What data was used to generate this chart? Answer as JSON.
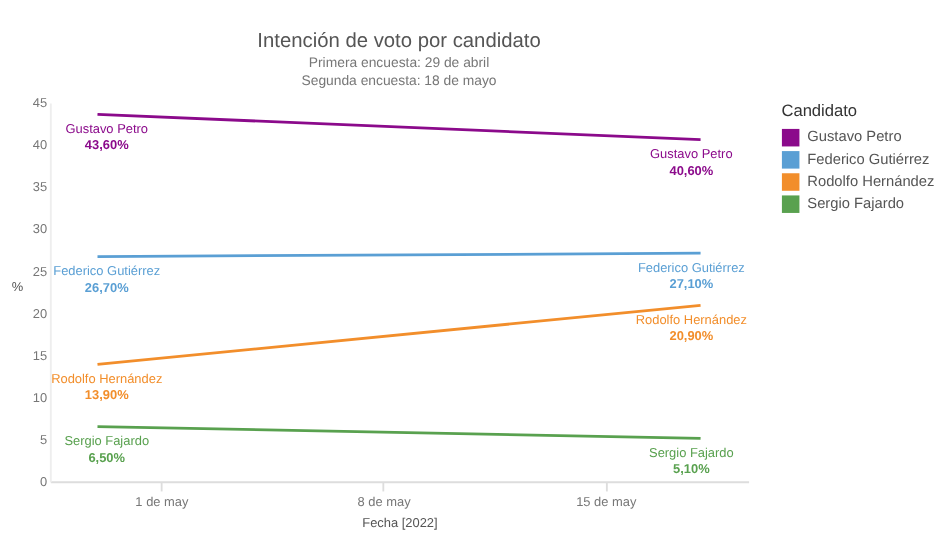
{
  "chart_data": {
    "type": "line",
    "title": "Intención de voto por candidato",
    "subtitle": [
      "Primera encuesta: 29 de abril",
      "Segunda encuesta: 18 de mayo"
    ],
    "xlabel": "Fecha [2022]",
    "ylabel": "%",
    "legend_title": "Candidato",
    "legend": "top right",
    "grid": false,
    "marker": "none",
    "line_style": "solid",
    "x": [
      "2022-04-29",
      "2022-05-18"
    ],
    "xlim": [
      "2022-04-27T12:00",
      "2022-05-19T12:00"
    ],
    "xticks": [
      {
        "value": "2022-05-01",
        "label": "1 de may"
      },
      {
        "value": "2022-05-08",
        "label": "8 de may"
      },
      {
        "value": "2022-05-15",
        "label": "15 de may"
      }
    ],
    "ylim": [
      0,
      45
    ],
    "yticks": [
      0,
      5,
      10,
      15,
      20,
      25,
      30,
      35,
      40,
      45
    ],
    "series": [
      {
        "name": "Gustavo Petro",
        "color": "#8b0a8b",
        "values": [
          43.6,
          40.6
        ],
        "value_labels": [
          "43,60%",
          "40,60%"
        ]
      },
      {
        "name": "Federico Gutiérrez",
        "color": "#5a9fd4",
        "values": [
          26.7,
          27.1
        ],
        "value_labels": [
          "26,70%",
          "27,10%"
        ]
      },
      {
        "name": "Rodolfo Hernández",
        "color": "#f28e2b",
        "values": [
          13.9,
          20.9
        ],
        "value_labels": [
          "13,90%",
          "20,90%"
        ]
      },
      {
        "name": "Sergio Fajardo",
        "color": "#59a14f",
        "values": [
          6.5,
          5.1
        ],
        "value_labels": [
          "6,50%",
          "5,10%"
        ]
      }
    ]
  }
}
